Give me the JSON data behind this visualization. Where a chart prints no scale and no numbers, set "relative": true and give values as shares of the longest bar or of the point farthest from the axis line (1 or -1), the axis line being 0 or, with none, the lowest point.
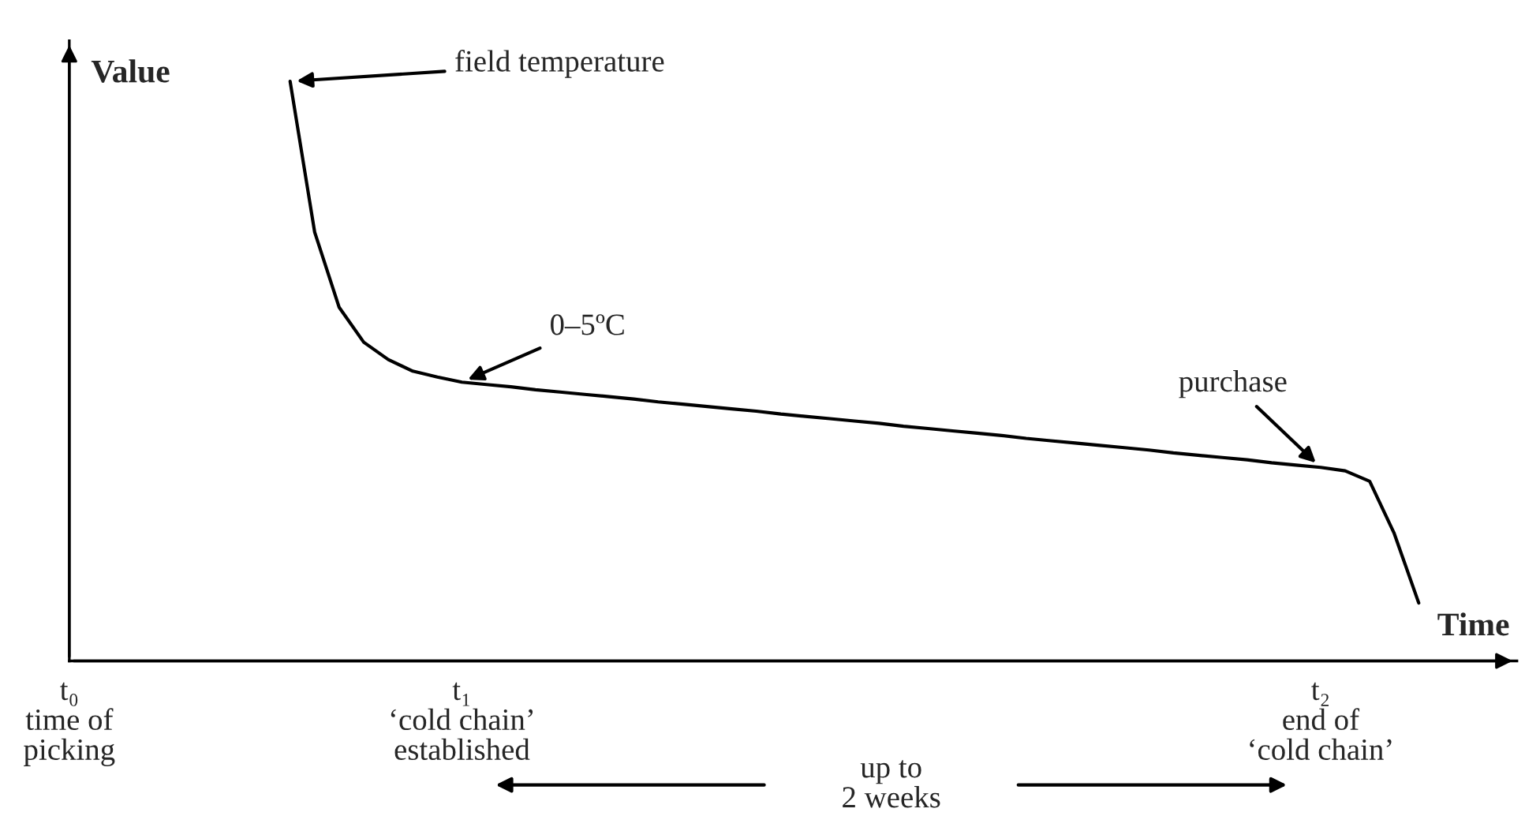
{
  "chart_data": {
    "type": "line",
    "relative": true,
    "xlabel": "Time",
    "ylabel": "Value",
    "categories": [
      "t₀\ntime of\npicking",
      null,
      null,
      null,
      null,
      null,
      null,
      null,
      null,
      null,
      null,
      null,
      null,
      null,
      null,
      null,
      "t₁\n‘cold chain’\nestablished",
      null,
      null,
      null,
      null,
      null,
      null,
      null,
      null,
      null,
      null,
      null,
      null,
      null,
      null,
      null,
      null,
      null,
      null,
      null,
      null,
      null,
      null,
      null,
      null,
      null,
      null,
      null,
      null,
      null,
      null,
      null,
      null,
      null,
      null,
      "t₂\nend of\n‘cold chain’",
      null,
      null,
      null,
      null
    ],
    "series": [
      {
        "color": "#000000",
        "values": [
          null,
          null,
          null,
          null,
          null,
          null,
          null,
          null,
          null,
          1.0,
          0.74,
          0.61,
          0.55,
          0.52,
          0.5,
          0.49,
          0.481,
          0.477,
          0.473,
          0.468,
          0.464,
          0.46,
          0.456,
          0.452,
          0.447,
          0.443,
          0.439,
          0.435,
          0.431,
          0.426,
          0.422,
          0.418,
          0.414,
          0.41,
          0.405,
          0.401,
          0.397,
          0.393,
          0.389,
          0.384,
          0.38,
          0.376,
          0.372,
          0.368,
          0.364,
          0.359,
          0.355,
          0.351,
          0.347,
          0.342,
          0.338,
          0.334,
          0.328,
          0.31,
          0.22,
          0.1
        ]
      }
    ],
    "annotations": [
      "field temperature",
      "0–5ºC",
      "purchase",
      "up to\n2 weeks"
    ],
    "legend": false,
    "marker": "none",
    "line_style": "solid"
  }
}
